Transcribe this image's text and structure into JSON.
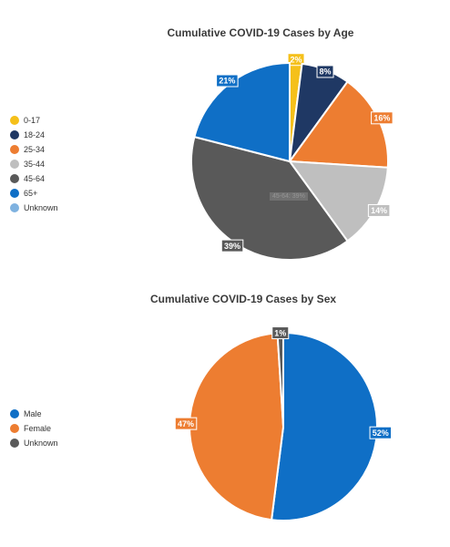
{
  "charts": {
    "age": {
      "title": "Cumulative COVID-19 Cases by Age",
      "legend": [
        {
          "label": "0-17",
          "color": "#f5c01a"
        },
        {
          "label": "18-24",
          "color": "#1f3864"
        },
        {
          "label": "25-34",
          "color": "#ed7d31"
        },
        {
          "label": "35-44",
          "color": "#bfbfbf"
        },
        {
          "label": "45-64",
          "color": "#595959"
        },
        {
          "label": "65+",
          "color": "#0f6fc6"
        },
        {
          "label": "Unknown",
          "color": "#7fb2e0"
        }
      ],
      "hover_text": "45-64: 39%"
    },
    "sex": {
      "title": "Cumulative COVID-19 Cases by Sex",
      "legend": [
        {
          "label": "Male",
          "color": "#0f6fc6"
        },
        {
          "label": "Female",
          "color": "#ed7d31"
        },
        {
          "label": "Unknown",
          "color": "#595959"
        }
      ]
    }
  },
  "chart_data": [
    {
      "type": "pie",
      "title": "Cumulative COVID-19 Cases by Age",
      "categories": [
        "0-17",
        "18-24",
        "25-34",
        "35-44",
        "45-64",
        "65+",
        "Unknown"
      ],
      "values": [
        2,
        8,
        16,
        14,
        39,
        21,
        0
      ],
      "labels": [
        "2%",
        "8%",
        "16%",
        "14%",
        "39%",
        "21%",
        ""
      ],
      "colors": [
        "#f5c01a",
        "#1f3864",
        "#ed7d31",
        "#bfbfbf",
        "#595959",
        "#0f6fc6",
        "#7fb2e0"
      ],
      "legend_position": "left"
    },
    {
      "type": "pie",
      "title": "Cumulative COVID-19 Cases by Sex",
      "categories": [
        "Male",
        "Female",
        "Unknown"
      ],
      "values": [
        52,
        47,
        1
      ],
      "labels": [
        "52%",
        "47%",
        "1%"
      ],
      "colors": [
        "#0f6fc6",
        "#ed7d31",
        "#595959"
      ],
      "legend_position": "left"
    }
  ]
}
